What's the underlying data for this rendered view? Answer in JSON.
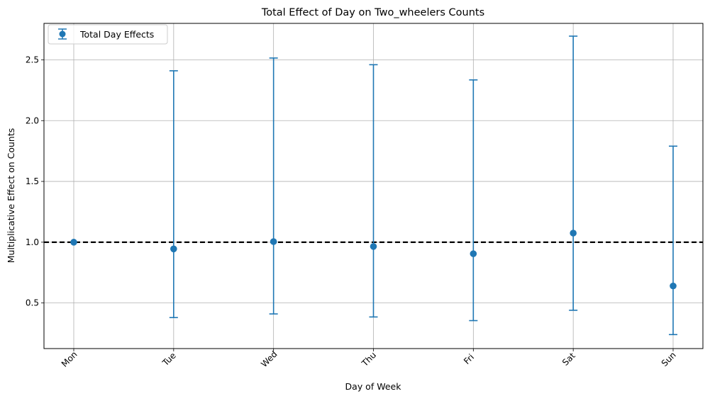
{
  "chart_data": {
    "type": "scatter",
    "title": "Total Effect of Day on Two_wheelers Counts",
    "xlabel": "Day of Week",
    "ylabel": "Multiplicative Effect on Counts",
    "categories": [
      "Mon",
      "Tue",
      "Wed",
      "Thu",
      "Fri",
      "Sat",
      "Sun"
    ],
    "series": [
      {
        "name": "Total Day Effects",
        "values": [
          1.0,
          0.945,
          1.005,
          0.965,
          0.905,
          1.075,
          0.64
        ],
        "lower": [
          1.0,
          0.38,
          0.41,
          0.385,
          0.355,
          0.44,
          0.24
        ],
        "upper": [
          1.0,
          2.41,
          2.515,
          2.46,
          2.335,
          2.695,
          1.79
        ]
      }
    ],
    "ylim": [
      0.125,
      2.8
    ],
    "yticks": [
      0.5,
      1.0,
      1.5,
      2.0,
      2.5
    ],
    "ytick_labels": [
      "0.5",
      "1.0",
      "1.5",
      "2.0",
      "2.5"
    ],
    "reference_line": 1.0,
    "legend_position": "top-left",
    "grid": true,
    "colors": {
      "series": "#1f77b4",
      "reference": "#000000",
      "grid": "#b0b0b0"
    }
  }
}
